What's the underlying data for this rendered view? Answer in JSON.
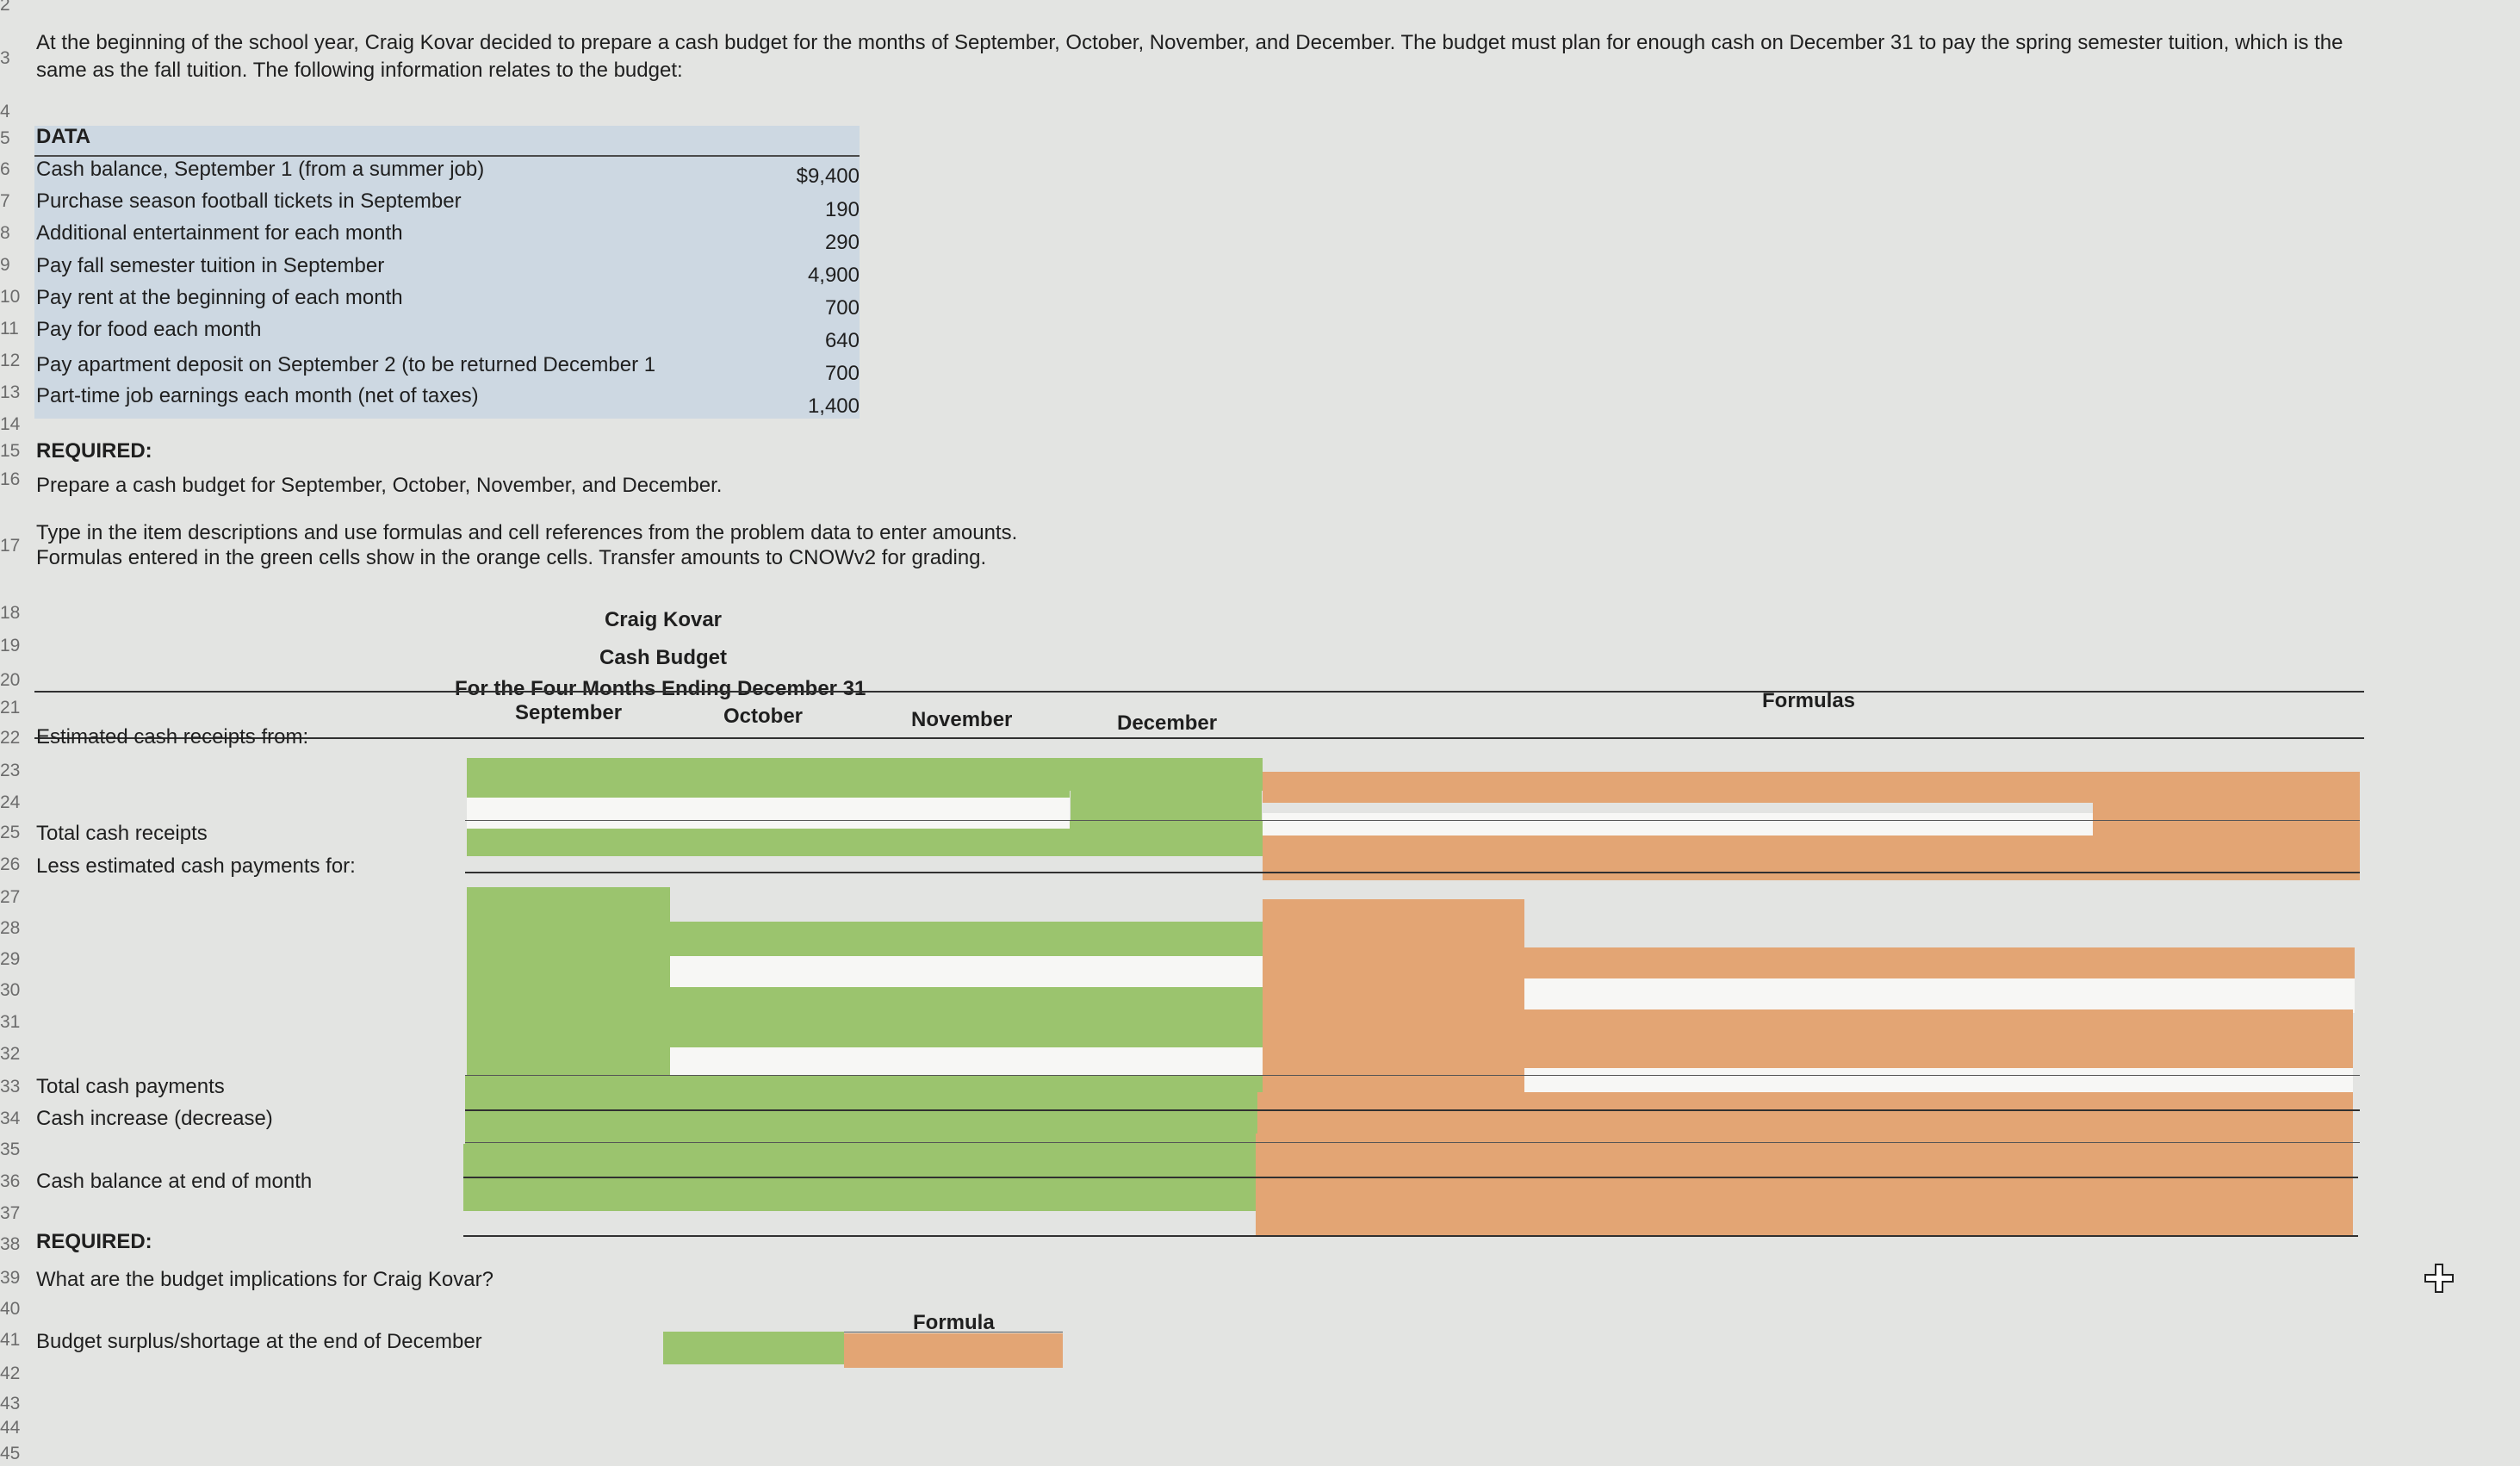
{
  "intro_text": "At the beginning of the school year, Craig Kovar decided to prepare a cash budget for the months of September, October, November, and December. The budget must plan for enough cash on December 31 to pay the spring semester tuition, which is the same as the fall tuition. The following information relates to the budget:",
  "row_numbers": [
    "2",
    "3",
    "4",
    "5",
    "6",
    "7",
    "8",
    "9",
    "10",
    "11",
    "12",
    "13",
    "14",
    "15",
    "16",
    "17",
    "18",
    "19",
    "20",
    "21",
    "22",
    "23",
    "24",
    "25",
    "26",
    "27",
    "28",
    "29",
    "30",
    "31",
    "32",
    "33",
    "34",
    "35",
    "36",
    "37",
    "38",
    "39",
    "40",
    "41",
    "42",
    "43",
    "44",
    "45"
  ],
  "data_heading": "DATA",
  "data_items": [
    {
      "label": "Cash balance, September 1 (from a summer job)",
      "value": "$9,400"
    },
    {
      "label": "Purchase season football tickets in September",
      "value": "190"
    },
    {
      "label": "Additional entertainment for each month",
      "value": "290"
    },
    {
      "label": "Pay fall semester tuition in September",
      "value": "4,900"
    },
    {
      "label": "Pay rent at the beginning of each month",
      "value": "700"
    },
    {
      "label": "Pay for food each month",
      "value": "640"
    },
    {
      "label": "Pay apartment deposit on September 2 (to be returned December 1",
      "value": "700"
    },
    {
      "label": "Part-time job earnings each month (net of taxes)",
      "value": "1,400"
    }
  ],
  "required1": "REQUIRED:",
  "required1_text": "Prepare a cash budget for September, October, November, and December.",
  "instructions_line1": "Type in the item descriptions and use formulas and cell references from the problem data to enter amounts.",
  "instructions_line2": "Formulas entered in the green cells show in the orange cells. Transfer amounts to CNOWv2 for grading.",
  "budget": {
    "name": "Craig Kovar",
    "title": "Cash Budget",
    "period": "For the Four Months Ending December 31",
    "months": [
      "September",
      "October",
      "November",
      "December"
    ],
    "formulas_label": "Formulas",
    "rows": {
      "receipts": "Estimated cash receipts from:",
      "total_receipts": "Total cash receipts",
      "payments": "Less estimated cash payments for:",
      "total_payments": "Total cash payments",
      "increase": "Cash increase (decrease)",
      "end_balance": "Cash balance at end of month"
    }
  },
  "required2": "REQUIRED:",
  "required2_text": "What are the budget implications for Craig Kovar?",
  "formula_label": "Formula",
  "surplus_label": "Budget surplus/shortage at the end of December",
  "colors": {
    "green": "#9bc46e",
    "orange": "#e3a574",
    "data_fill": "#cdd8e2"
  }
}
